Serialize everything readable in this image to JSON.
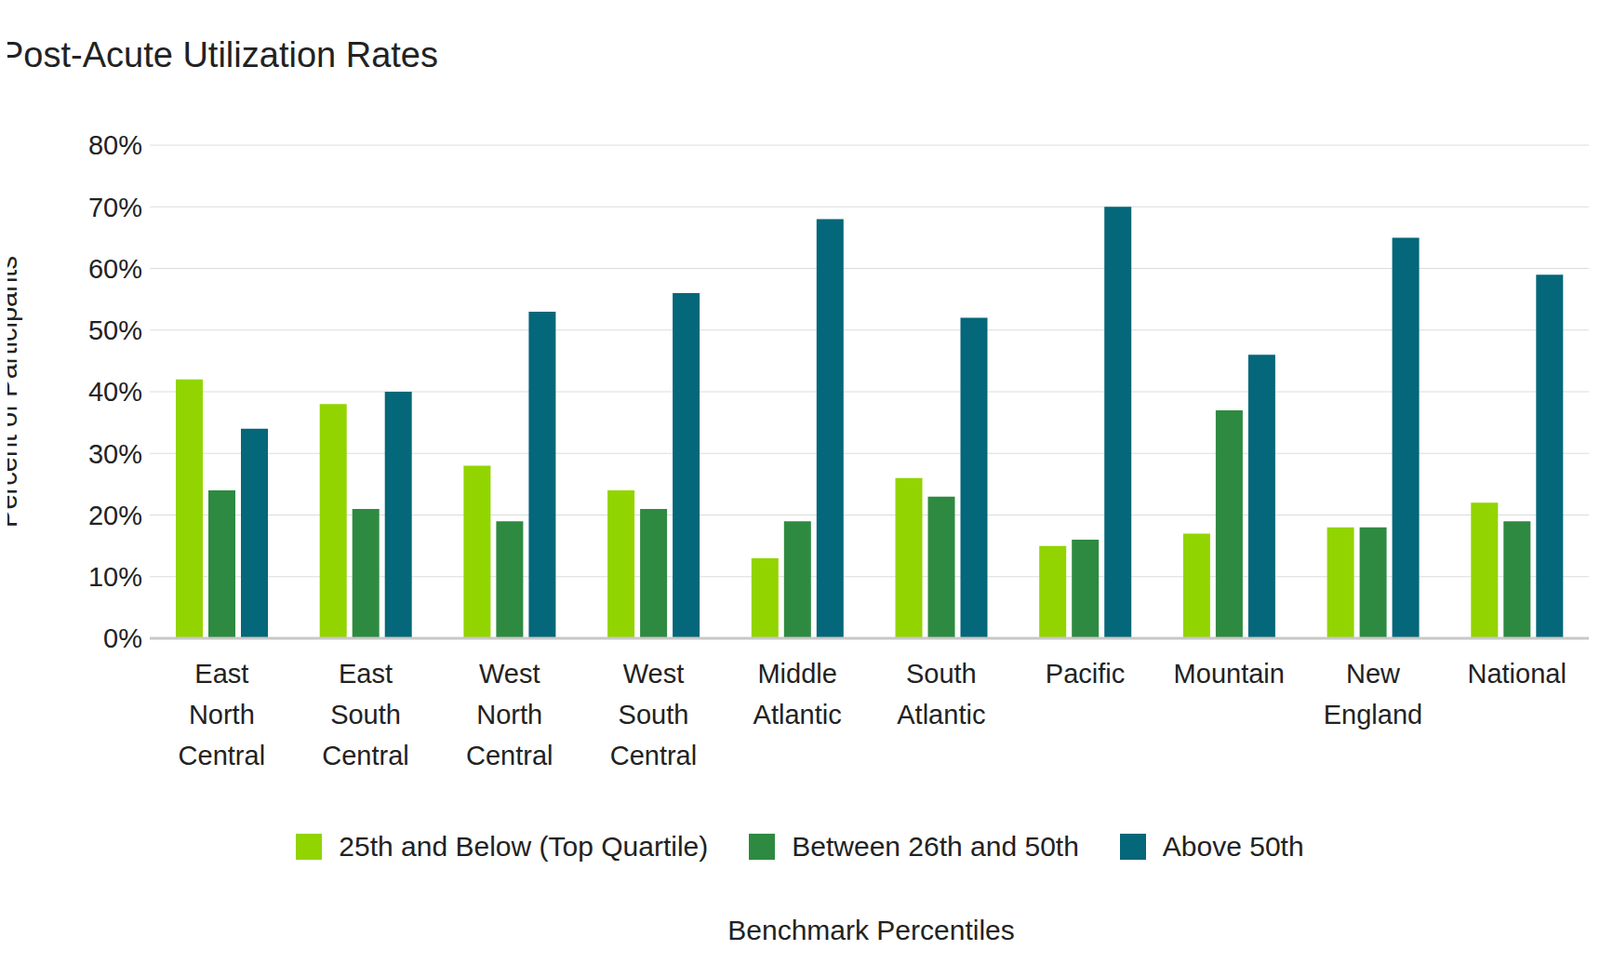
{
  "chart_data": {
    "type": "bar",
    "title": "Post-Acute Utilization Rates",
    "x_label": "Benchmark Percentiles",
    "y_label": "Percent of Participants",
    "categories": [
      "East North Central",
      "East South Central",
      "West North Central",
      "West South Central",
      "Middle Atlantic",
      "South Atlantic",
      "Pacific",
      "Mountain",
      "New England",
      "National"
    ],
    "series": [
      {
        "name": "25th and Below (Top Quartile)",
        "color": "#92d400",
        "values": [
          42,
          38,
          28,
          24,
          13,
          26,
          15,
          17,
          18,
          22
        ]
      },
      {
        "name": "Between 26th and 50th",
        "color": "#2e8a40",
        "values": [
          24,
          21,
          19,
          21,
          19,
          23,
          16,
          37,
          18,
          19
        ]
      },
      {
        "name": "Above 50th",
        "color": "#05677a",
        "values": [
          34,
          40,
          53,
          56,
          68,
          52,
          70,
          46,
          65,
          59
        ]
      }
    ],
    "ylim": [
      0,
      80
    ],
    "yticks": [
      {
        "value": 0,
        "label": "0%"
      },
      {
        "value": 10,
        "label": "10%"
      },
      {
        "value": 20,
        "label": "20%"
      },
      {
        "value": 30,
        "label": "30%"
      },
      {
        "value": 40,
        "label": "40%"
      },
      {
        "value": 50,
        "label": "50%"
      },
      {
        "value": 60,
        "label": "60%"
      },
      {
        "value": 70,
        "label": "70%"
      },
      {
        "value": 80,
        "label": "80%"
      }
    ],
    "grid": true,
    "legend": "bottom"
  }
}
